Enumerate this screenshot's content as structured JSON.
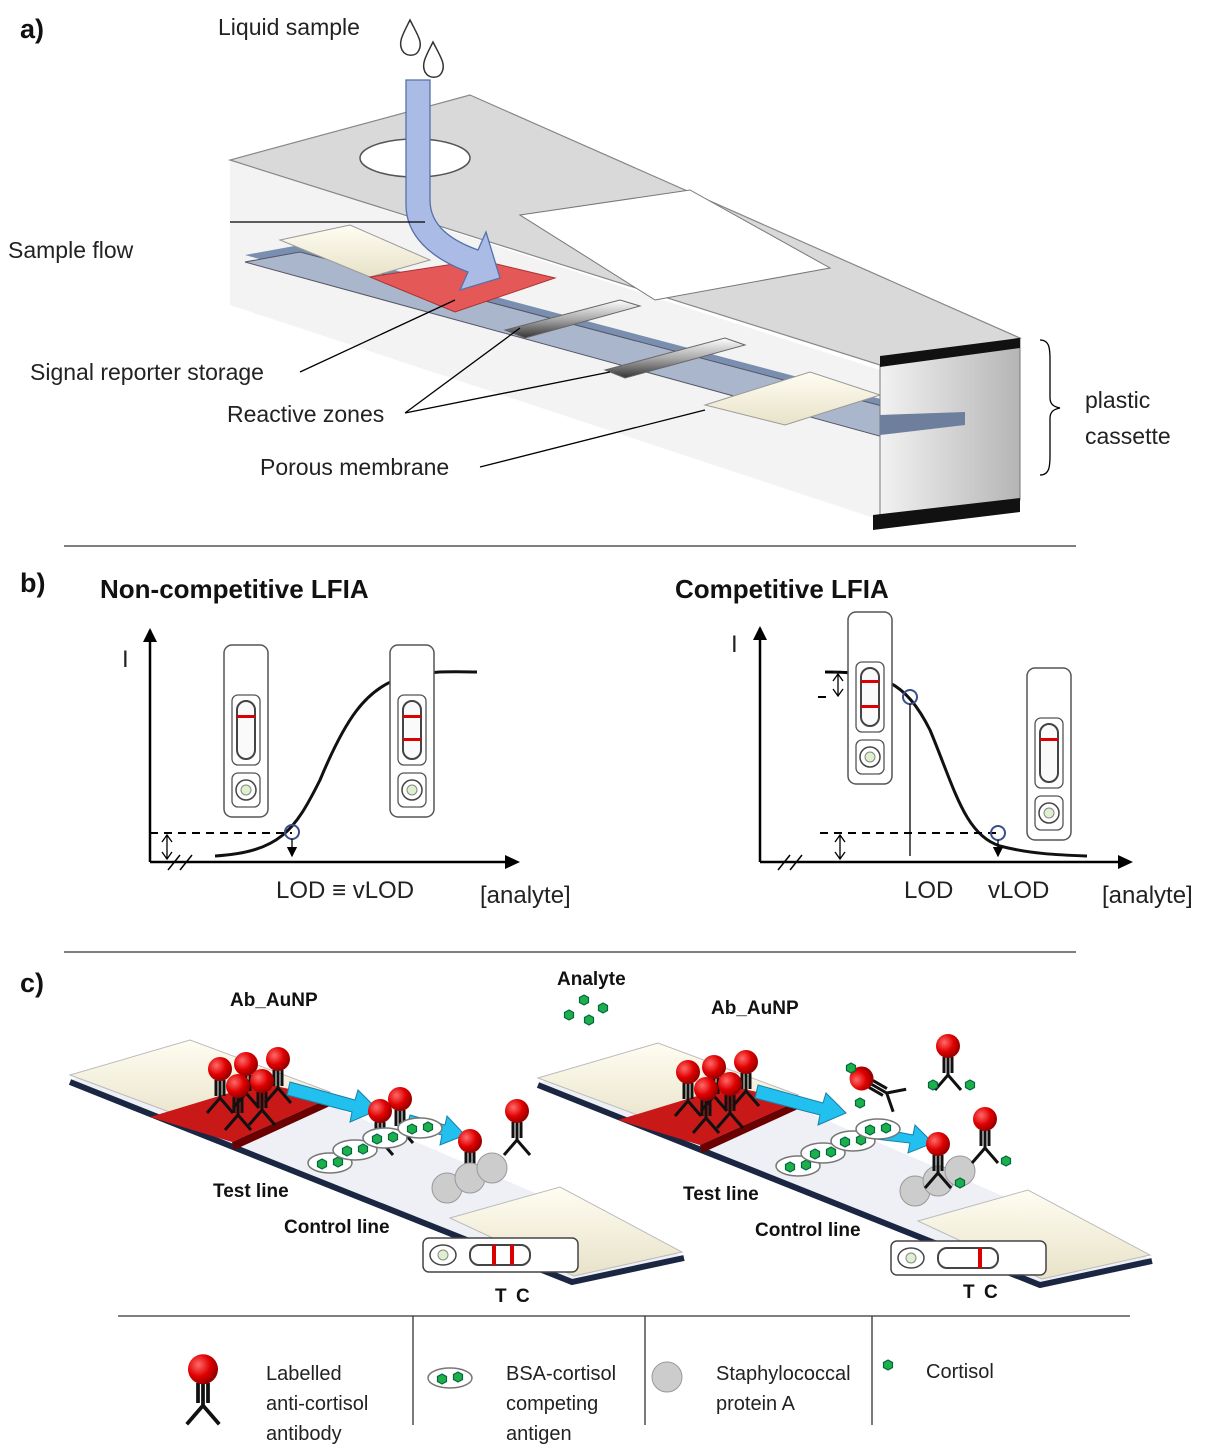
{
  "panel_a": {
    "label": "a)",
    "liquid_sample": "Liquid sample",
    "sample_flow": "Sample flow",
    "signal_reporter_storage": "Signal reporter storage",
    "reactive_zones": "Reactive zones",
    "porous_membrane": "Porous membrane",
    "cassette_lines": [
      "plastic",
      "cassette"
    ]
  },
  "panel_b": {
    "label": "b)",
    "non_competitive": {
      "title": "Non-competitive LFIA",
      "y_axis": "I",
      "x_axis": "[analyte]",
      "lod": "LOD ≡ vLOD"
    },
    "competitive": {
      "title": "Competitive LFIA",
      "y_axis": "I",
      "x_axis": "[analyte]",
      "lod": "LOD",
      "vlod": "vLOD"
    }
  },
  "panel_c": {
    "label": "c)",
    "left": {
      "antibody": "Ab_AuNP",
      "test_line": "Test line",
      "control_line": "Control line",
      "t": "T",
      "c": "C"
    },
    "right": {
      "analyte": "Analyte",
      "antibody": "Ab_AuNP",
      "test_line": "Test line",
      "control_line": "Control line",
      "t": "T",
      "c": "C"
    },
    "legend": [
      {
        "lines": [
          "Labelled",
          "anti-cortisol",
          "antibody"
        ]
      },
      {
        "lines": [
          "BSA-cortisol",
          "competing",
          "antigen"
        ]
      },
      {
        "lines": [
          "Staphylococcal",
          "protein A"
        ]
      },
      {
        "lines": [
          "Cortisol"
        ]
      }
    ]
  }
}
